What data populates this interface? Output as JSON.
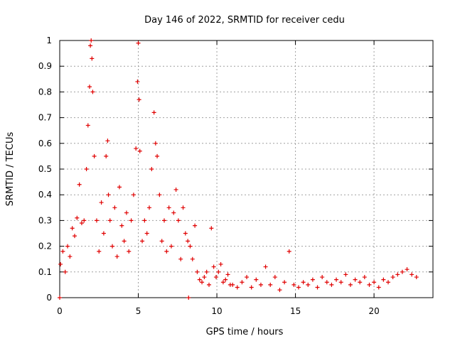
{
  "chart_data": {
    "type": "scatter",
    "title": "Day 146 of 2022, SRMTID for receiver cedu",
    "xlabel": "GPS time / hours",
    "ylabel": "SRMTID / TECUs",
    "xlim": [
      0,
      23.75
    ],
    "ylim": [
      0,
      1
    ],
    "x_ticks": [
      0,
      5,
      10,
      15,
      20
    ],
    "x_tick_labels": [
      "0",
      "5",
      "10",
      "15",
      "20"
    ],
    "y_ticks": [
      0,
      0.1,
      0.2,
      0.3,
      0.4,
      0.5,
      0.6,
      0.7,
      0.8,
      0.9,
      1
    ],
    "y_tick_labels": [
      "0",
      "0.1",
      "0.2",
      "0.3",
      "0.4",
      "0.5",
      "0.6",
      "0.7",
      "0.8",
      "0.9",
      "1"
    ],
    "grid": true,
    "series": [
      {
        "name": "SRMTID",
        "color": "#e00000",
        "marker": "plus",
        "x": [
          0.05,
          0.2,
          0.35,
          0.5,
          0.65,
          0.8,
          0.95,
          1.1,
          1.25,
          1.4,
          1.55,
          1.7,
          1.8,
          1.9,
          1.95,
          2.0,
          2.05,
          2.1,
          2.2,
          2.35,
          2.5,
          2.65,
          2.8,
          2.95,
          3.05,
          3.1,
          3.2,
          3.35,
          3.5,
          3.65,
          3.8,
          3.95,
          4.1,
          4.25,
          4.4,
          4.55,
          4.7,
          4.85,
          4.95,
          5.0,
          5.05,
          5.1,
          5.25,
          5.4,
          5.55,
          5.7,
          5.85,
          6.0,
          6.1,
          6.2,
          6.35,
          6.5,
          6.65,
          6.8,
          6.95,
          7.1,
          7.25,
          7.4,
          7.55,
          7.7,
          7.85,
          8.0,
          8.15,
          8.3,
          8.45,
          8.6,
          8.75,
          8.9,
          9.05,
          9.2,
          9.35,
          9.5,
          9.65,
          9.8,
          9.95,
          10.1,
          10.25,
          10.4,
          10.55,
          10.7,
          10.85,
          11.0,
          11.3,
          11.6,
          11.9,
          12.2,
          12.5,
          12.8,
          13.1,
          13.4,
          13.7,
          14.0,
          14.3,
          14.6,
          14.9,
          15.2,
          15.5,
          15.8,
          16.1,
          16.4,
          16.7,
          17.0,
          17.3,
          17.6,
          17.9,
          18.2,
          18.5,
          18.8,
          19.1,
          19.4,
          19.7,
          20.0,
          20.3,
          20.6,
          20.9,
          21.2,
          21.5,
          21.8,
          22.1,
          22.4,
          22.7,
          0.0,
          8.2
        ],
        "values": [
          0.13,
          0.18,
          0.1,
          0.2,
          0.16,
          0.27,
          0.24,
          0.31,
          0.44,
          0.29,
          0.3,
          0.5,
          0.67,
          0.82,
          0.98,
          1.0,
          0.93,
          0.8,
          0.55,
          0.3,
          0.18,
          0.37,
          0.25,
          0.55,
          0.61,
          0.4,
          0.3,
          0.2,
          0.35,
          0.16,
          0.43,
          0.28,
          0.22,
          0.33,
          0.18,
          0.3,
          0.4,
          0.58,
          0.84,
          0.99,
          0.77,
          0.57,
          0.22,
          0.3,
          0.25,
          0.35,
          0.5,
          0.72,
          0.6,
          0.55,
          0.4,
          0.22,
          0.3,
          0.18,
          0.35,
          0.2,
          0.33,
          0.42,
          0.3,
          0.15,
          0.35,
          0.25,
          0.22,
          0.2,
          0.15,
          0.28,
          0.1,
          0.07,
          0.06,
          0.08,
          0.1,
          0.05,
          0.27,
          0.12,
          0.08,
          0.1,
          0.13,
          0.06,
          0.07,
          0.09,
          0.05,
          0.05,
          0.04,
          0.06,
          0.08,
          0.04,
          0.07,
          0.05,
          0.12,
          0.05,
          0.08,
          0.03,
          0.06,
          0.18,
          0.05,
          0.04,
          0.06,
          0.05,
          0.07,
          0.04,
          0.08,
          0.06,
          0.05,
          0.07,
          0.06,
          0.09,
          0.05,
          0.07,
          0.06,
          0.08,
          0.05,
          0.06,
          0.04,
          0.07,
          0.06,
          0.08,
          0.09,
          0.1,
          0.11,
          0.09,
          0.08,
          0.0,
          0.0
        ]
      }
    ]
  }
}
